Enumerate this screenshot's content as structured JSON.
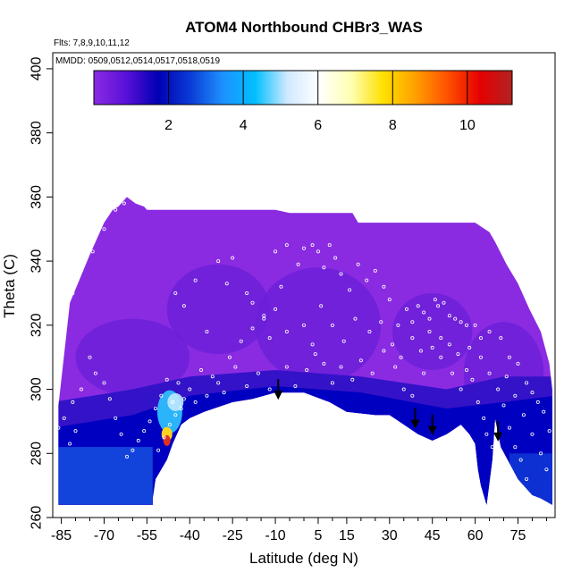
{
  "chart_data": {
    "type": "heatmap",
    "title": "ATOM4 Northbound CHBr3_WAS",
    "annotations": {
      "flights": "Flts: 7,8,9,10,11,12",
      "dates": "MMDD: 0509,0512,0514,0517,0518,0519"
    },
    "xlabel": "Latitude (deg N)",
    "ylabel": "Theta (C)",
    "xlim": [
      -88,
      88
    ],
    "ylim": [
      260,
      405
    ],
    "x_ticks": [
      -85,
      -70,
      -55,
      -40,
      -25,
      -10,
      5,
      15,
      30,
      45,
      60,
      75
    ],
    "x_minor_ticks": [
      -80,
      -75,
      -65,
      -60,
      -50,
      -45,
      -35,
      -30,
      -20,
      -15,
      -5,
      0,
      10,
      20,
      25,
      35,
      40,
      50,
      55,
      65,
      70,
      80,
      85
    ],
    "y_ticks": [
      260,
      280,
      300,
      320,
      340,
      360,
      380,
      400
    ],
    "colorbar": {
      "range": [
        0,
        11.2
      ],
      "ticks": [
        2,
        4,
        6,
        8,
        10
      ],
      "colors": [
        "#8a2be2",
        "#5a10d8",
        "#0000b4",
        "#0a3cd6",
        "#1e90ff",
        "#00bfff",
        "#cfe9ff",
        "#ffffff",
        "#ffffb3",
        "#ffe000",
        "#ff9f00",
        "#ff5000",
        "#e60000",
        "#b22222"
      ],
      "placement": "top"
    },
    "grid": false,
    "fill_colors": {
      "background": "#8a2be2",
      "mid": "#6a1fd8",
      "deep": "#3412c8",
      "band": "#0000c0",
      "band_light": "#1550e0",
      "hot": "#e0301e",
      "warm": "#ffd21e",
      "cyan": "#30c8ff"
    },
    "upper_boundary": [
      [
        -86,
        295
      ],
      [
        -82,
        327
      ],
      [
        -75,
        342
      ],
      [
        -70,
        352
      ],
      [
        -67,
        356
      ],
      [
        -65,
        357
      ],
      [
        -62,
        360
      ],
      [
        -59,
        358
      ],
      [
        -56,
        357
      ],
      [
        -55,
        356
      ],
      [
        -10,
        356
      ],
      [
        -5,
        355
      ],
      [
        17,
        355
      ],
      [
        19,
        352
      ],
      [
        60,
        352
      ],
      [
        65,
        349
      ],
      [
        67,
        346
      ],
      [
        71,
        339
      ],
      [
        75,
        333
      ],
      [
        79,
        325
      ],
      [
        83,
        318
      ],
      [
        86,
        308
      ],
      [
        87,
        300
      ],
      [
        87,
        264
      ]
    ],
    "lower_boundary": [
      [
        87,
        264
      ],
      [
        83,
        266
      ],
      [
        80,
        267
      ],
      [
        78,
        269
      ],
      [
        75,
        272
      ],
      [
        72,
        277
      ],
      [
        69,
        282
      ],
      [
        67,
        291
      ],
      [
        66,
        278
      ],
      [
        64,
        264
      ],
      [
        62,
        270
      ],
      [
        61,
        275
      ],
      [
        60,
        283
      ],
      [
        58,
        286
      ],
      [
        55,
        289
      ],
      [
        50,
        286
      ],
      [
        45,
        284
      ],
      [
        40,
        286
      ],
      [
        35,
        289
      ],
      [
        30,
        292
      ],
      [
        25,
        292
      ],
      [
        15,
        293
      ],
      [
        9,
        296
      ],
      [
        0,
        299
      ],
      [
        -10,
        299
      ],
      [
        -18,
        297
      ],
      [
        -25,
        296
      ],
      [
        -35,
        293
      ],
      [
        -40,
        291
      ],
      [
        -43,
        289
      ],
      [
        -46,
        283
      ],
      [
        -48,
        278
      ],
      [
        -50,
        275
      ],
      [
        -52,
        272
      ],
      [
        -53,
        266
      ],
      [
        -53,
        264
      ],
      [
        -86,
        264
      ]
    ],
    "hotspot_center": [
      -48,
      284
    ],
    "arrows": [
      {
        "lat": -9,
        "theta": 297
      },
      {
        "lat": 39,
        "theta": 288
      },
      {
        "lat": 45,
        "theta": 286
      },
      {
        "lat": 68,
        "theta": 284
      }
    ],
    "sample_points": [
      [
        -30,
        340
      ],
      [
        -27,
        333
      ],
      [
        -25,
        341
      ],
      [
        -20,
        330
      ],
      [
        -18,
        327
      ],
      [
        -14,
        323
      ],
      [
        -12,
        316
      ],
      [
        -10,
        343
      ],
      [
        -8,
        332
      ],
      [
        -6,
        345
      ],
      [
        -2,
        339
      ],
      [
        0,
        344
      ],
      [
        3,
        345
      ],
      [
        5,
        343
      ],
      [
        7,
        338
      ],
      [
        9,
        345
      ],
      [
        11,
        341
      ],
      [
        13,
        336
      ],
      [
        16,
        331
      ],
      [
        19,
        339
      ],
      [
        22,
        334
      ],
      [
        25,
        337
      ],
      [
        28,
        332
      ],
      [
        30,
        328
      ],
      [
        33,
        320
      ],
      [
        36,
        325
      ],
      [
        38,
        321
      ],
      [
        40,
        326
      ],
      [
        42,
        324
      ],
      [
        44,
        322
      ],
      [
        46,
        328
      ],
      [
        47,
        326
      ],
      [
        49,
        327
      ],
      [
        51,
        323
      ],
      [
        53,
        322
      ],
      [
        55,
        321
      ],
      [
        57,
        320
      ],
      [
        60,
        320
      ],
      [
        62,
        316
      ],
      [
        65,
        318
      ],
      [
        69,
        316
      ],
      [
        72,
        310
      ],
      [
        75,
        308
      ],
      [
        78,
        302
      ],
      [
        80,
        299
      ],
      [
        82,
        296
      ],
      [
        84,
        293
      ],
      [
        86,
        287
      ],
      [
        70,
        295
      ],
      [
        72,
        288
      ],
      [
        74,
        282
      ],
      [
        76,
        278
      ],
      [
        64,
        286
      ],
      [
        66,
        282
      ],
      [
        63,
        291
      ],
      [
        61,
        296
      ],
      [
        59,
        303
      ],
      [
        57,
        306
      ],
      [
        55,
        300
      ],
      [
        52,
        305
      ],
      [
        48,
        310
      ],
      [
        45,
        313
      ],
      [
        42,
        305
      ],
      [
        38,
        298
      ],
      [
        35,
        300
      ],
      [
        32,
        307
      ],
      [
        28,
        312
      ],
      [
        24,
        305
      ],
      [
        20,
        309
      ],
      [
        17,
        303
      ],
      [
        13,
        307
      ],
      [
        10,
        302
      ],
      [
        7,
        308
      ],
      [
        4,
        311
      ],
      [
        1,
        306
      ],
      [
        -3,
        301
      ],
      [
        -6,
        307
      ],
      [
        -12,
        300
      ],
      [
        -16,
        305
      ],
      [
        -20,
        301
      ],
      [
        -24,
        307
      ],
      [
        -28,
        299
      ],
      [
        -32,
        304
      ],
      [
        -36,
        306
      ],
      [
        -40,
        300
      ],
      [
        -42,
        297
      ],
      [
        -44,
        302
      ],
      [
        -46,
        296
      ],
      [
        -48,
        303
      ],
      [
        -50,
        298
      ],
      [
        -52,
        294
      ],
      [
        -54,
        290
      ],
      [
        -56,
        287
      ],
      [
        -58,
        284
      ],
      [
        -60,
        281
      ],
      [
        -62,
        279
      ],
      [
        -64,
        286
      ],
      [
        -66,
        291
      ],
      [
        -68,
        297
      ],
      [
        -70,
        302
      ],
      [
        -73,
        305
      ],
      [
        -75,
        310
      ],
      [
        -78,
        300
      ],
      [
        -81,
        296
      ],
      [
        -84,
        291
      ],
      [
        -86,
        288
      ],
      [
        -80,
        287
      ],
      [
        -82,
        283
      ],
      [
        -47,
        289
      ],
      [
        -45,
        292
      ],
      [
        -49,
        285
      ],
      [
        -51,
        281
      ],
      [
        -43,
        294
      ],
      [
        -38,
        296
      ],
      [
        -34,
        298
      ],
      [
        -30,
        302
      ],
      [
        -26,
        310
      ],
      [
        -22,
        315
      ],
      [
        -18,
        319
      ],
      [
        -14,
        322
      ],
      [
        -70,
        350
      ],
      [
        -74,
        343
      ],
      [
        -78,
        337
      ],
      [
        -81,
        330
      ],
      [
        -84,
        322
      ],
      [
        -63,
        358
      ],
      [
        -66,
        356
      ],
      [
        -45,
        330
      ],
      [
        -42,
        326
      ],
      [
        -38,
        334
      ],
      [
        -34,
        318
      ],
      [
        -10,
        325
      ],
      [
        -6,
        318
      ],
      [
        0,
        320
      ],
      [
        3,
        314
      ],
      [
        6,
        326
      ],
      [
        10,
        320
      ],
      [
        14,
        315
      ],
      [
        18,
        322
      ],
      [
        23,
        318
      ],
      [
        27,
        321
      ],
      [
        31,
        314
      ],
      [
        34,
        310
      ],
      [
        38,
        316
      ],
      [
        41,
        312
      ],
      [
        44,
        318
      ],
      [
        48,
        316
      ],
      [
        51,
        314
      ],
      [
        54,
        311
      ],
      [
        58,
        313
      ],
      [
        62,
        310
      ],
      [
        65,
        305
      ],
      [
        68,
        300
      ],
      [
        71,
        304
      ],
      [
        74,
        298
      ],
      [
        77,
        292
      ],
      [
        80,
        286
      ],
      [
        83,
        280
      ],
      [
        85,
        275
      ],
      [
        78,
        272
      ]
    ]
  }
}
